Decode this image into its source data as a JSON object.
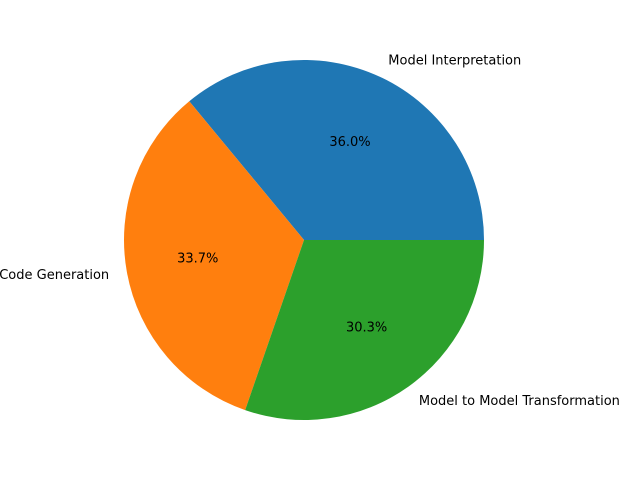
{
  "chart_data": {
    "type": "pie",
    "categories": [
      "Model Interpretation",
      "Code Generation",
      "Model to Model Transformation"
    ],
    "values": [
      36.0,
      33.7,
      30.3
    ],
    "percent_labels": [
      "36.0%",
      "33.7%",
      "30.3%"
    ],
    "colors": [
      "#1f77b4",
      "#ff7f0e",
      "#2ca02c"
    ],
    "start_angle_deg": 0,
    "direction": "counterclockwise",
    "legend": "none"
  }
}
